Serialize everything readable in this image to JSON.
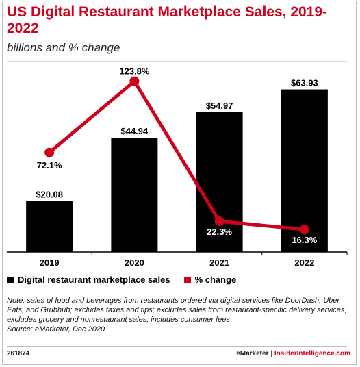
{
  "title": "US Digital Restaurant Marketplace Sales, 2019-2022",
  "subtitle": "billions and % change",
  "legend": {
    "bar_label": "Digital restaurant marketplace sales",
    "line_label": "% change"
  },
  "note": "Note: sales of food and beverages from restaurants ordered via digital services like DoorDash, Uber Eats, and Grubhub; excludes taxes and tips; excludes sales from restaurant-specific delivery services; excludes grocery and nonrestaurant sales; includes consumer fees",
  "source": "Source: eMarketer, Dec 2020",
  "footer": {
    "chart_id": "261874",
    "brand": "eMarketer",
    "separator": "|",
    "brand2": "InsiderIntelligence.com"
  },
  "colors": {
    "bar": "#000000",
    "line": "#d0021b",
    "title": "#d0021b"
  },
  "chart_data": {
    "type": "bar",
    "categories": [
      "2019",
      "2020",
      "2021",
      "2022"
    ],
    "series": [
      {
        "name": "Digital restaurant marketplace sales",
        "type": "bar",
        "values": [
          20.08,
          44.94,
          54.97,
          63.93
        ],
        "labels": [
          "$20.08",
          "$44.94",
          "$54.97",
          "$63.93"
        ]
      },
      {
        "name": "% change",
        "type": "line",
        "values": [
          72.1,
          123.8,
          22.3,
          16.3
        ],
        "labels": [
          "72.1%",
          "123.8%",
          "22.3%",
          "16.3%"
        ]
      }
    ],
    "grid": false,
    "legend_position": "bottom-left"
  }
}
